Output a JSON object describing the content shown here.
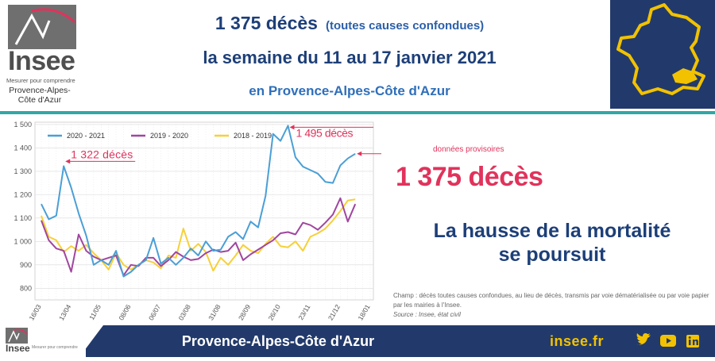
{
  "header": {
    "count": "1 375 décès",
    "count_note": "(toutes causes confondues)",
    "week": "la semaine du 11 au 17 janvier 2021",
    "region": "en Provence-Alpes-Côte d'Azur"
  },
  "logo": {
    "word": "Insee",
    "tagline": "Mesurer pour comprendre",
    "region_line1": "Provence-Alpes-",
    "region_line2": "Côte d'Azur"
  },
  "side": {
    "provisional": "données provisoires",
    "big_count": "1 375 décès",
    "message_line1": "La hausse de la mortalité",
    "message_line2": "se poursuit",
    "note": "Champ : décès toutes causes confondues, au lieu de décès, transmis par voie dématérialisée ou par voie papier par les mairies à l'Insee.",
    "source": "Source : Insee, état civil"
  },
  "footer": {
    "logo_word": "Insee",
    "logo_tag": "Mesurer pour comprendre",
    "region": "Provence-Alpes-Côte d'Azur",
    "site": "insee.fr",
    "icons": [
      "twitter-icon",
      "youtube-icon",
      "linkedin-icon"
    ]
  },
  "colors": {
    "navy": "#223a6b",
    "teal": "#2fa7a6",
    "red": "#e0335c",
    "yellow": "#f2c200",
    "s2021": "#4a9fd6",
    "s2020": "#a0469f",
    "s2019": "#f7d038"
  },
  "chart_data": {
    "type": "line",
    "ylim": [
      750,
      1510
    ],
    "yticks": [
      "800",
      "900",
      "1 000",
      "1 100",
      "1 200",
      "1 300",
      "1 400",
      "1 500"
    ],
    "yticks_values": [
      800,
      900,
      1000,
      1100,
      1200,
      1300,
      1400,
      1500
    ],
    "x_tick_labels": [
      "16/03",
      "13/04",
      "11/05",
      "08/06",
      "06/07",
      "03/08",
      "31/08",
      "28/09",
      "26/10",
      "23/11",
      "21/12",
      "18/01"
    ],
    "x_tick_index": [
      0,
      4,
      8,
      12,
      16,
      20,
      24,
      28,
      32,
      36,
      40,
      44
    ],
    "grid": true,
    "legend_position": "top-left",
    "series": [
      {
        "name": "2020 - 2021",
        "color": "#4a9fd6",
        "values": [
          1160,
          1095,
          1110,
          1322,
          1230,
          1120,
          1025,
          900,
          920,
          900,
          960,
          850,
          870,
          900,
          920,
          1015,
          905,
          930,
          900,
          930,
          970,
          940,
          1000,
          960,
          965,
          1020,
          1040,
          1010,
          1085,
          1060,
          1195,
          1460,
          1430,
          1495,
          1360,
          1320,
          1305,
          1290,
          1255,
          1250,
          1325,
          1355,
          1375
        ]
      },
      {
        "name": "2019 - 2020",
        "color": "#a0469f",
        "values": [
          1090,
          1005,
          970,
          960,
          870,
          1030,
          960,
          935,
          920,
          930,
          940,
          855,
          900,
          895,
          930,
          930,
          895,
          920,
          955,
          935,
          920,
          925,
          950,
          965,
          955,
          960,
          995,
          920,
          945,
          965,
          985,
          1005,
          1035,
          1040,
          1030,
          1080,
          1070,
          1050,
          1080,
          1115,
          1185,
          1085,
          1160
        ]
      },
      {
        "name": "2018 - 2019",
        "color": "#f7d038",
        "values": [
          1110,
          1020,
          1005,
          955,
          980,
          960,
          985,
          950,
          920,
          880,
          950,
          900,
          880,
          900,
          920,
          910,
          885,
          940,
          930,
          1055,
          960,
          990,
          955,
          875,
          930,
          900,
          940,
          985,
          960,
          950,
          990,
          1020,
          980,
          975,
          1000,
          960,
          1020,
          1035,
          1055,
          1090,
          1130,
          1175,
          1180
        ]
      }
    ],
    "annotations": [
      {
        "text": "1 322 décès",
        "series": "2020 - 2021",
        "index": 3
      },
      {
        "text": "1 495 décès",
        "series": "2020 - 2021",
        "index": 33
      },
      {
        "text": "données provisoires",
        "series": "2020 - 2021",
        "index": 42
      }
    ]
  }
}
